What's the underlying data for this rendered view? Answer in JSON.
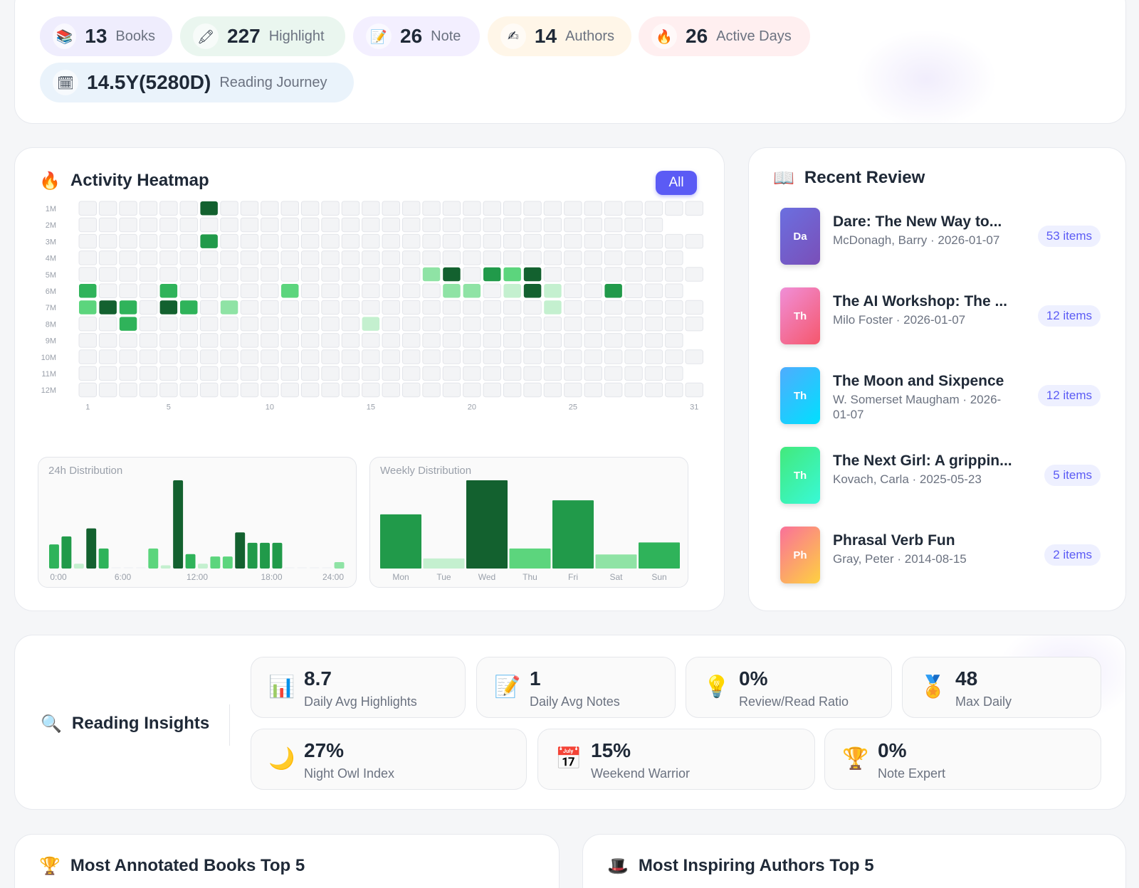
{
  "stats": {
    "chips": [
      {
        "icon": "📚",
        "icon_name": "books-icon",
        "value": "13",
        "label": "Books",
        "bg": "#efedfd"
      },
      {
        "icon": "🖍",
        "icon_name": "highlighter-icon",
        "value": "227",
        "label": "Highlight",
        "bg": "#eaf6ef"
      },
      {
        "icon": "📝",
        "icon_name": "note-icon",
        "value": "26",
        "label": "Note",
        "bg": "#f3efff"
      },
      {
        "icon": "✍",
        "icon_name": "writing-hand-icon",
        "value": "14",
        "label": "Authors",
        "bg": "#fff6e8"
      },
      {
        "icon": "🔥",
        "icon_name": "fire-icon",
        "value": "26",
        "label": "Active Days",
        "bg": "#ffeff0"
      },
      {
        "icon": "🗓",
        "icon_name": "calendar-icon",
        "value": "14.5Y(5280D)",
        "label": "Reading Journey",
        "bg": "#eaf3fb"
      }
    ]
  },
  "heatmap": {
    "title": "Activity Heatmap",
    "title_icon": "🔥",
    "filter_label": "All",
    "months": [
      "1M",
      "2M",
      "3M",
      "4M",
      "5M",
      "6M",
      "7M",
      "8M",
      "9M",
      "10M",
      "11M",
      "12M"
    ],
    "day_ticks": [
      "1",
      "5",
      "10",
      "15",
      "20",
      "25",
      "31"
    ],
    "day_tick_values": [
      1,
      5,
      10,
      15,
      20,
      25,
      31
    ],
    "days_in_month": [
      31,
      29,
      31,
      30,
      31,
      30,
      31,
      31,
      30,
      31,
      30,
      31
    ],
    "levels": [
      "#f3f4f6",
      "#c4f0cf",
      "#8fe3a5",
      "#5cd57d",
      "#2fb35a",
      "#219a4a",
      "#13612f"
    ],
    "active_cells": [
      {
        "m": 1,
        "d": 7,
        "l": 6
      },
      {
        "m": 3,
        "d": 7,
        "l": 5
      },
      {
        "m": 5,
        "d": 18,
        "l": 2
      },
      {
        "m": 5,
        "d": 19,
        "l": 6
      },
      {
        "m": 5,
        "d": 21,
        "l": 5
      },
      {
        "m": 5,
        "d": 22,
        "l": 3
      },
      {
        "m": 5,
        "d": 23,
        "l": 6
      },
      {
        "m": 6,
        "d": 1,
        "l": 4
      },
      {
        "m": 6,
        "d": 5,
        "l": 4
      },
      {
        "m": 6,
        "d": 11,
        "l": 3
      },
      {
        "m": 6,
        "d": 19,
        "l": 2
      },
      {
        "m": 6,
        "d": 20,
        "l": 2
      },
      {
        "m": 6,
        "d": 22,
        "l": 1
      },
      {
        "m": 6,
        "d": 23,
        "l": 6
      },
      {
        "m": 6,
        "d": 24,
        "l": 1
      },
      {
        "m": 6,
        "d": 27,
        "l": 5
      },
      {
        "m": 7,
        "d": 1,
        "l": 3
      },
      {
        "m": 7,
        "d": 2,
        "l": 6
      },
      {
        "m": 7,
        "d": 3,
        "l": 4
      },
      {
        "m": 7,
        "d": 5,
        "l": 6
      },
      {
        "m": 7,
        "d": 6,
        "l": 4
      },
      {
        "m": 7,
        "d": 8,
        "l": 2
      },
      {
        "m": 7,
        "d": 24,
        "l": 1
      },
      {
        "m": 8,
        "d": 3,
        "l": 4
      },
      {
        "m": 8,
        "d": 15,
        "l": 1
      }
    ]
  },
  "hourly": {
    "title": "24h Distribution",
    "tick_labels": [
      "0:00",
      "6:00",
      "12:00",
      "18:00",
      "24:00"
    ],
    "values": [
      3,
      4,
      0.6,
      5,
      2.5,
      0,
      0,
      0,
      2.5,
      0.4,
      11,
      1.8,
      0.6,
      1.5,
      1.5,
      4.5,
      3.2,
      3.2,
      3.2,
      0,
      0,
      0,
      0,
      0.8
    ],
    "levels": [
      4,
      5,
      1,
      6,
      4,
      0,
      0,
      0,
      3,
      1,
      6,
      4,
      1,
      3,
      3,
      6,
      5,
      5,
      5,
      0,
      0,
      0,
      0,
      2
    ]
  },
  "weekly": {
    "title": "Weekly Distribution",
    "days": [
      "Mon",
      "Tue",
      "Wed",
      "Thu",
      "Fri",
      "Sat",
      "Sun"
    ],
    "values": [
      27,
      5,
      44,
      10,
      34,
      7,
      13
    ],
    "levels": [
      5,
      1,
      6,
      3,
      5,
      2,
      4
    ]
  },
  "recent_review": {
    "title": "Recent Review",
    "title_icon": "📖",
    "items": [
      {
        "abbr": "Da",
        "title": "Dare: The New Way to...",
        "meta": "McDonagh, Barry · 2026-01-07",
        "count": "53 items",
        "grad": [
          "#6b6fe0",
          "#7a4fb8"
        ]
      },
      {
        "abbr": "Th",
        "title": "The AI Workshop: The ...",
        "meta": "Milo Foster · 2026-01-07",
        "count": "12 items",
        "grad": [
          "#f08fd8",
          "#f5576c"
        ]
      },
      {
        "abbr": "Th",
        "title": "The Moon and Sixpence",
        "meta": "W. Somerset Maugham · 2026-01-07",
        "count": "12 items",
        "grad": [
          "#4facfe",
          "#00e0fe"
        ]
      },
      {
        "abbr": "Th",
        "title": "The Next Girl: A grippin...",
        "meta": "Kovach, Carla · 2025-05-23",
        "count": "5 items",
        "grad": [
          "#43e97b",
          "#38f9d7"
        ]
      },
      {
        "abbr": "Ph",
        "title": "Phrasal Verb Fun",
        "meta": "Gray, Peter · 2014-08-15",
        "count": "2 items",
        "grad": [
          "#fa709a",
          "#fed140"
        ]
      }
    ]
  },
  "insights": {
    "title": "Reading Insights",
    "title_icon": "🔍",
    "metrics": [
      {
        "icon": "📊",
        "icon_name": "bar-chart-icon",
        "value": "8.7",
        "label": "Daily Avg Highlights"
      },
      {
        "icon": "📝",
        "icon_name": "memo-icon",
        "value": "1",
        "label": "Daily Avg Notes"
      },
      {
        "icon": "💡",
        "icon_name": "lightbulb-icon",
        "value": "0%",
        "label": "Review/Read Ratio"
      },
      {
        "icon": "🏅",
        "icon_name": "medal-icon",
        "value": "48",
        "label": "Max Daily"
      },
      {
        "icon": "🌙",
        "icon_name": "moon-icon",
        "value": "27%",
        "label": "Night Owl Index"
      },
      {
        "icon": "📅",
        "icon_name": "calendar-icon",
        "value": "15%",
        "label": "Weekend Warrior"
      },
      {
        "icon": "🏆",
        "icon_name": "trophy-icon",
        "value": "0%",
        "label": "Note Expert"
      }
    ]
  },
  "top_books": {
    "title": "Most Annotated Books Top 5",
    "title_icon": "🏆"
  },
  "top_authors": {
    "title": "Most Inspiring Authors Top 5",
    "title_icon": "🎩"
  }
}
